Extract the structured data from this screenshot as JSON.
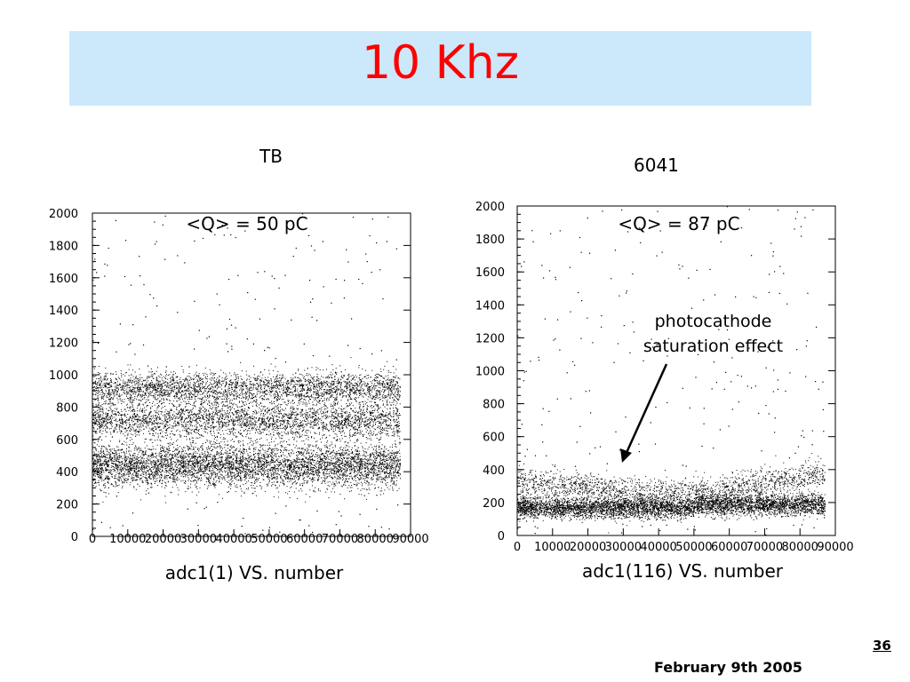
{
  "slide": {
    "title": "10 Khz",
    "page_number": "36",
    "date": "February 9th 2005"
  },
  "colors": {
    "title_text": "#ff0000",
    "title_background": "#cce8fb",
    "points": "#000000"
  },
  "chart_data": [
    {
      "type": "scatter",
      "label": "TB",
      "annotation": "<Q> = 50 pC",
      "xlabel": "adc1(1) VS. number",
      "ylabel": "",
      "xlim": [
        0,
        90000
      ],
      "ylim": [
        0,
        2000
      ],
      "x_ticks": [
        "0",
        "10000",
        "20000",
        "30000",
        "40000",
        "50000",
        "60000",
        "70000",
        "80000",
        "90000"
      ],
      "y_ticks": [
        "0",
        "200",
        "400",
        "600",
        "800",
        "1000",
        "1200",
        "1400",
        "1600",
        "1800",
        "2000"
      ],
      "data_x_range": [
        0,
        87000
      ],
      "bands": [
        {
          "center": 440,
          "spread": 150,
          "density": "very high"
        },
        {
          "center": 720,
          "spread": 120,
          "density": "high"
        },
        {
          "center": 920,
          "spread": 110,
          "density": "high"
        }
      ],
      "sparse_background_range": [
        0,
        2000
      ]
    },
    {
      "type": "scatter",
      "label": "6041",
      "annotation": "<Q> = 87 pC",
      "callout": "photocathode saturation effect",
      "xlabel": "adc1(116) VS. number",
      "ylabel": "",
      "xlim": [
        0,
        90000
      ],
      "ylim": [
        0,
        2000
      ],
      "x_ticks": [
        "0",
        "10000",
        "20000",
        "30000",
        "40000",
        "50000",
        "60000",
        "70000",
        "80000",
        "90000"
      ],
      "y_ticks": [
        "0",
        "200",
        "400",
        "600",
        "800",
        "1000",
        "1200",
        "1400",
        "1600",
        "1800",
        "2000"
      ],
      "data_x_range": [
        0,
        87000
      ],
      "bands": [
        {
          "center": 170,
          "spread": 70,
          "density": "very high",
          "step_at": 50000,
          "step_to": 190
        },
        {
          "center": 330,
          "spread": 90,
          "density": "medium",
          "dip_to": 270,
          "dip_at": 35000,
          "rise_after": 55000,
          "rise_to": 380
        }
      ],
      "sparse_background_range": [
        0,
        2000
      ]
    }
  ]
}
